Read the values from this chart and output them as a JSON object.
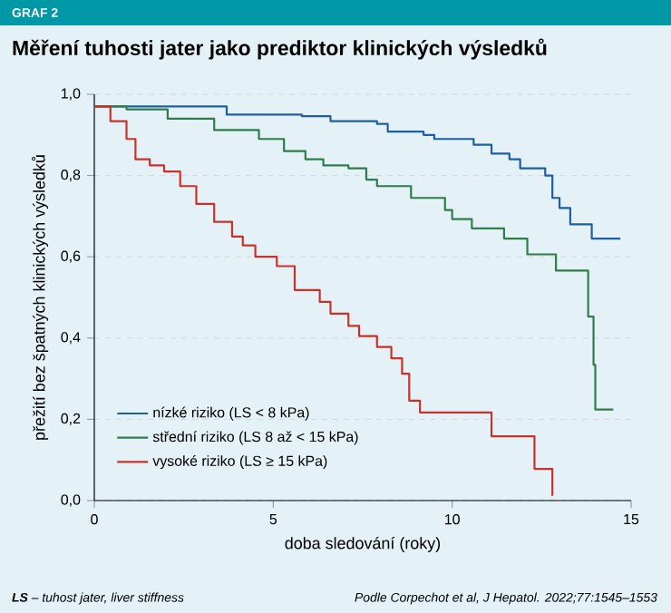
{
  "chart_data": {
    "type": "step",
    "title": "Měření tuhosti jater jako prediktor klinických výsledků",
    "xlabel": "doba sledování (roky)",
    "ylabel": "přežití bez špatných klinických výsledků",
    "annotations": [
      "GRAF 2",
      "**LS** – tuhost jater, liver stiffness",
      "Podle Corpechot et al, J Hepatol. 2022;77:1545–1553"
    ],
    "series": [
      {
        "name": "nízké riziko (LS < 8 kPa)",
        "color": "#1f5fa0",
        "x": [
          0,
          3.7,
          5.8,
          6.6,
          7.9,
          8.2,
          9.2,
          9.5,
          10.6,
          11.1,
          11.6,
          11.9,
          12.6,
          12.8,
          13.0,
          13.3,
          13.9,
          14.7
        ],
        "values": [
          0.97,
          0.95,
          0.946,
          0.934,
          0.927,
          0.908,
          0.9,
          0.89,
          0.876,
          0.854,
          0.84,
          0.818,
          0.8,
          0.745,
          0.72,
          0.68,
          0.645,
          0.645
        ]
      },
      {
        "name": "střední riziko (LS 8 až < 15 kPa)",
        "color": "#2e7d4a",
        "x": [
          0,
          0.9,
          2.05,
          3.35,
          4.6,
          5.3,
          5.9,
          6.4,
          7.1,
          7.6,
          7.9,
          8.85,
          9.8,
          10.0,
          10.55,
          11.45,
          12.1,
          12.9,
          13.8,
          13.95,
          14.0,
          14.5
        ],
        "values": [
          0.97,
          0.963,
          0.94,
          0.912,
          0.89,
          0.86,
          0.84,
          0.825,
          0.818,
          0.79,
          0.774,
          0.745,
          0.715,
          0.693,
          0.67,
          0.645,
          0.606,
          0.566,
          0.453,
          0.334,
          0.224,
          0.224
        ]
      },
      {
        "name": "vysoké riziko (LS ≥ 15 kPa)",
        "color": "#c8322a",
        "x": [
          0,
          0.45,
          0.9,
          1.15,
          1.55,
          1.95,
          2.4,
          2.85,
          3.35,
          3.85,
          4.15,
          4.5,
          5.1,
          5.6,
          6.3,
          6.6,
          7.1,
          7.4,
          7.9,
          8.3,
          8.6,
          8.8,
          9.1,
          11.1,
          12.3,
          12.8
        ],
        "values": [
          0.97,
          0.934,
          0.89,
          0.84,
          0.825,
          0.81,
          0.774,
          0.73,
          0.686,
          0.65,
          0.628,
          0.6,
          0.577,
          0.518,
          0.489,
          0.46,
          0.43,
          0.405,
          0.378,
          0.35,
          0.312,
          0.246,
          0.217,
          0.158,
          0.078,
          0.012
        ]
      }
    ],
    "xlim": [
      0,
      15
    ],
    "xticks": [
      0,
      5,
      10,
      15
    ],
    "ylim": [
      0,
      1
    ],
    "yticks": [
      {
        "value": 0,
        "label": "0,0"
      },
      {
        "value": 0.2,
        "label": "0,2"
      },
      {
        "value": 0.4,
        "label": "0,4"
      },
      {
        "value": 0.6,
        "label": "0,6"
      },
      {
        "value": 0.8,
        "label": "0,8"
      },
      {
        "value": 1,
        "label": "1,0"
      }
    ],
    "grid": "y",
    "legend": "bottom left"
  }
}
